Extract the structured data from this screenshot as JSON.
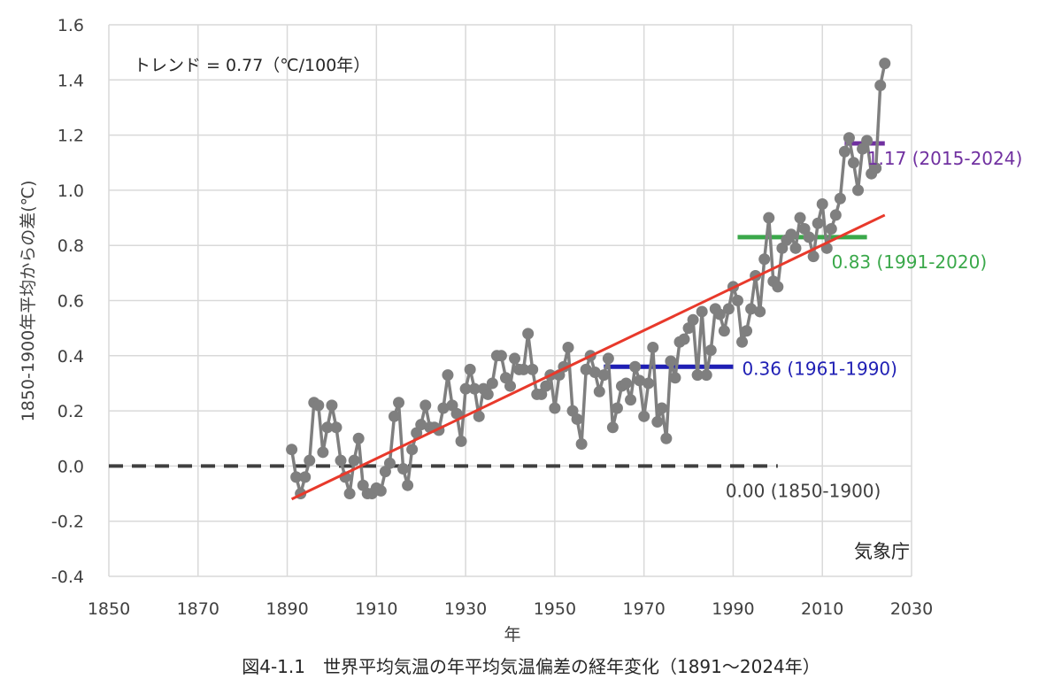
{
  "caption": "図4-1.1　世界平均気温の年平均気温偏差の経年変化（1891～2024年）",
  "chart_data": {
    "type": "line",
    "xlabel": "年",
    "ylabel": "1850-1900年平均からの差(℃)",
    "xlim": [
      1850,
      2030
    ],
    "ylim": [
      -0.4,
      1.6
    ],
    "xticks": [
      1850,
      1870,
      1890,
      1910,
      1930,
      1950,
      1970,
      1990,
      2010,
      2030
    ],
    "yticks": [
      -0.4,
      -0.2,
      0.0,
      0.2,
      0.4,
      0.6,
      0.8,
      1.0,
      1.2,
      1.4,
      1.6
    ],
    "xtick_labels": [
      "1850",
      "1870",
      "1890",
      "1910",
      "1930",
      "1950",
      "1970",
      "1990",
      "2010",
      "2030"
    ],
    "ytick_labels": [
      "-0.4",
      "-0.2",
      "0.0",
      "0.2",
      "0.4",
      "0.6",
      "0.8",
      "1.0",
      "1.2",
      "1.4",
      "1.6"
    ],
    "grid": true,
    "trend_text": "トレンド = 0.77（℃/100年）",
    "credit": "気象庁",
    "colors": {
      "series": "#7f7f7f",
      "trend": "#e8392b",
      "grid": "#d9d9d9"
    },
    "series": [
      {
        "x": [
          1891,
          1892,
          1893,
          1894,
          1895,
          1896,
          1897,
          1898,
          1899,
          1900,
          1901,
          1902,
          1903,
          1904,
          1905,
          1906,
          1907,
          1908,
          1909,
          1910,
          1911,
          1912,
          1913,
          1914,
          1915,
          1916,
          1917,
          1918,
          1919,
          1920,
          1921,
          1922,
          1923,
          1924,
          1925,
          1926,
          1927,
          1928,
          1929,
          1930,
          1931,
          1932,
          1933,
          1934,
          1935,
          1936,
          1937,
          1938,
          1939,
          1940,
          1941,
          1942,
          1943,
          1944,
          1945,
          1946,
          1947,
          1948,
          1949,
          1950,
          1951,
          1952,
          1953,
          1954,
          1955,
          1956,
          1957,
          1958,
          1959,
          1960,
          1961,
          1962,
          1963,
          1964,
          1965,
          1966,
          1967,
          1968,
          1969,
          1970,
          1971,
          1972,
          1973,
          1974,
          1975,
          1976,
          1977,
          1978,
          1979,
          1980,
          1981,
          1982,
          1983,
          1984,
          1985,
          1986,
          1987,
          1988,
          1989,
          1990,
          1991,
          1992,
          1993,
          1994,
          1995,
          1996,
          1997,
          1998,
          1999,
          2000,
          2001,
          2002,
          2003,
          2004,
          2005,
          2006,
          2007,
          2008,
          2009,
          2010,
          2011,
          2012,
          2013,
          2014,
          2015,
          2016,
          2017,
          2018,
          2019,
          2020,
          2021,
          2022,
          2023,
          2024
        ],
        "y": [
          0.06,
          -0.04,
          -0.1,
          -0.04,
          0.02,
          0.23,
          0.22,
          0.05,
          0.14,
          0.22,
          0.14,
          0.02,
          -0.04,
          -0.1,
          0.02,
          0.1,
          -0.07,
          -0.1,
          -0.1,
          -0.08,
          -0.09,
          -0.02,
          0.01,
          0.18,
          0.23,
          -0.01,
          -0.07,
          0.06,
          0.12,
          0.15,
          0.22,
          0.14,
          0.14,
          0.13,
          0.21,
          0.33,
          0.22,
          0.19,
          0.09,
          0.28,
          0.35,
          0.28,
          0.18,
          0.28,
          0.26,
          0.3,
          0.4,
          0.4,
          0.32,
          0.29,
          0.39,
          0.35,
          0.35,
          0.48,
          0.35,
          0.26,
          0.26,
          0.29,
          0.33,
          0.21,
          0.33,
          0.36,
          0.43,
          0.2,
          0.17,
          0.08,
          0.35,
          0.4,
          0.34,
          0.27,
          0.33,
          0.39,
          0.14,
          0.21,
          0.29,
          0.3,
          0.24,
          0.36,
          0.31,
          0.18,
          0.3,
          0.43,
          0.16,
          0.21,
          0.1,
          0.38,
          0.32,
          0.45,
          0.46,
          0.5,
          0.53,
          0.33,
          0.56,
          0.33,
          0.42,
          0.57,
          0.55,
          0.49,
          0.57,
          0.65,
          0.6,
          0.45,
          0.49,
          0.57,
          0.69,
          0.56,
          0.75,
          0.9,
          0.67,
          0.65,
          0.79,
          0.82,
          0.84,
          0.79,
          0.9,
          0.86,
          0.83,
          0.76,
          0.88,
          0.95,
          0.79,
          0.86,
          0.91,
          0.97,
          1.14,
          1.19,
          1.1,
          1.0,
          1.15,
          1.18,
          1.06,
          1.08,
          1.38,
          1.46
        ]
      }
    ],
    "trend": {
      "x": [
        1891,
        2024
      ],
      "y": [
        -0.12,
        0.91
      ],
      "label": "トレンド = 0.77（℃/100年）"
    },
    "reference_lines": [
      {
        "x_start": 1850,
        "x_end": 2000,
        "y": 0.0,
        "label": "0.00 (1850-1900)",
        "color": "#404040",
        "style": "dashed"
      },
      {
        "x_start": 1961,
        "x_end": 1990,
        "y": 0.36,
        "label": "0.36 (1961-1990)",
        "color": "#1f1fb4",
        "style": "solid"
      },
      {
        "x_start": 1991,
        "x_end": 2020,
        "y": 0.83,
        "label": "0.83 (1991-2020)",
        "color": "#3aa84a",
        "style": "solid"
      },
      {
        "x_start": 2015,
        "x_end": 2024,
        "y": 1.17,
        "label": "1.17 (2015-2024)",
        "color": "#7030a0",
        "style": "solid"
      }
    ]
  }
}
